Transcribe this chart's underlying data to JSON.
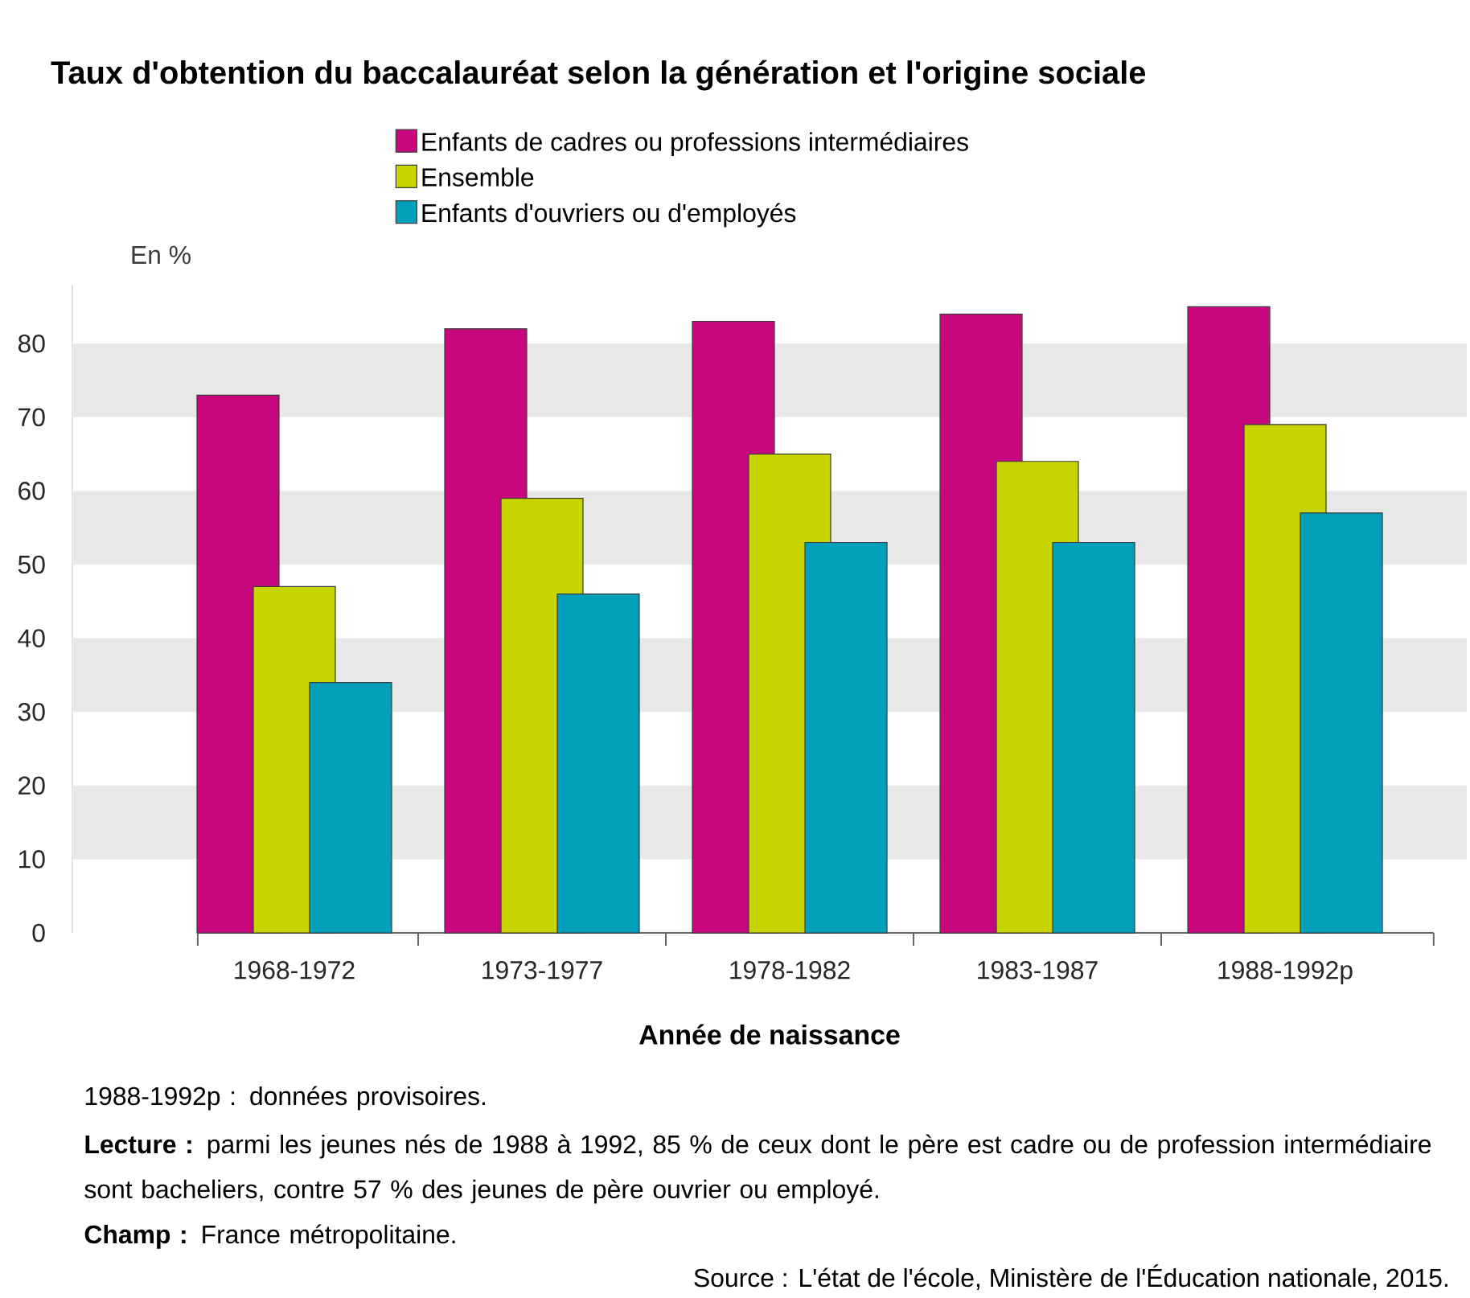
{
  "chart_data": {
    "type": "bar",
    "title": "Taux d'obtention du baccalauréat selon la génération et l'origine sociale",
    "xlabel": "Année de naissance",
    "categories": [
      "1968-1972",
      "1973-1977",
      "1978-1982",
      "1983-1987",
      "1988-1992p"
    ],
    "series": [
      {
        "name": "Enfants de cadres ou professions intermédiaires",
        "color": "#c8077f",
        "values": [
          73,
          82,
          83,
          84,
          85
        ]
      },
      {
        "name": "Ensemble",
        "color": "#c8d400",
        "values": [
          47,
          59,
          65,
          64,
          69
        ]
      },
      {
        "name": "Enfants d'ouvriers ou d'employés",
        "color": "#009fba",
        "values": [
          34,
          46,
          53,
          53,
          57
        ]
      }
    ],
    "ylim": [
      0,
      88
    ],
    "yticks": [
      0,
      10,
      20,
      30,
      40,
      50,
      60,
      70,
      80
    ],
    "bands": [
      {
        "axis": "y",
        "from": 10,
        "to": 20,
        "color": "#e8e8e8"
      },
      {
        "axis": "y",
        "from": 30,
        "to": 40,
        "color": "#e8e8e8"
      },
      {
        "axis": "y",
        "from": 50,
        "to": 60,
        "color": "#e8e8e8"
      },
      {
        "axis": "y",
        "from": 70,
        "to": 80,
        "color": "#e8e8e8"
      }
    ],
    "legend": "top",
    "annotations": [
      "En %",
      "1988-1992p : données provisoires.",
      "**Lecture :** parmi les jeunes nés de 1988 à 1992, 85 % de ceux dont le père est cadre ou de profession intermédiaire sont bacheliers, contre 57 % des jeunes de père ouvrier ou employé.",
      "**Champ :** France métropolitaine.",
      "Source : L'état de l'école, Ministère de l'Éducation nationale, 2015."
    ]
  }
}
